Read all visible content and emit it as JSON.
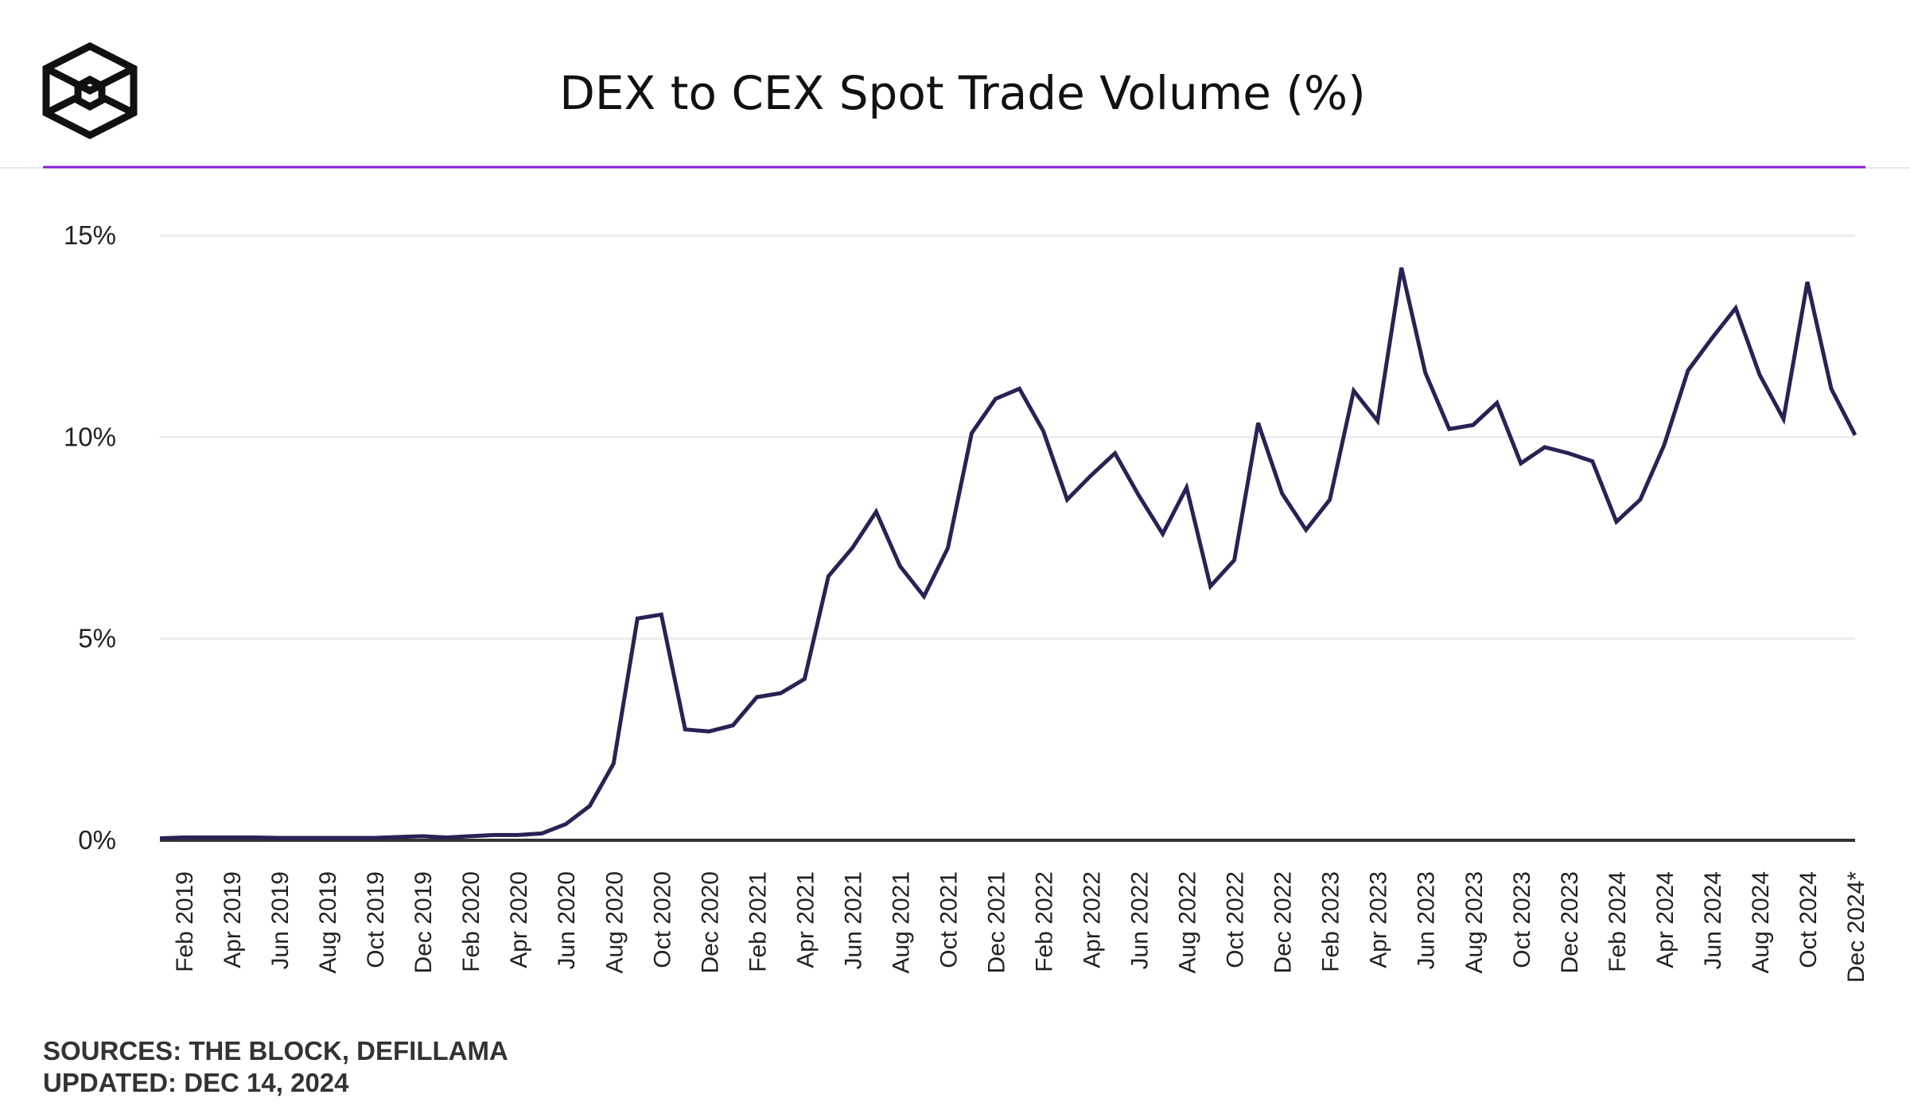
{
  "header": {
    "title": "DEX to CEX Spot Trade Volume (%)",
    "logo": "the-block-cube-logo"
  },
  "footer": {
    "sources": "SOURCES: THE BLOCK, DEFILLAMA",
    "updated": "UPDATED: DEC 14, 2024"
  },
  "colors": {
    "line": "#2a2154",
    "accent_rule": "#8a1fd6",
    "grid": "#ececec",
    "axis": "#333333"
  },
  "chart_data": {
    "type": "line",
    "title": "DEX to CEX Spot Trade Volume (%)",
    "xlabel": "",
    "ylabel": "",
    "ylim": [
      0,
      15
    ],
    "yticks": [
      {
        "value": 0,
        "label": "0%"
      },
      {
        "value": 5,
        "label": "5%"
      },
      {
        "value": 10,
        "label": "10%"
      },
      {
        "value": 15,
        "label": "15%"
      }
    ],
    "grid": true,
    "x": [
      "Jan 2019",
      "Feb 2019",
      "Mar 2019",
      "Apr 2019",
      "May 2019",
      "Jun 2019",
      "Jul 2019",
      "Aug 2019",
      "Sep 2019",
      "Oct 2019",
      "Nov 2019",
      "Dec 2019",
      "Jan 2020",
      "Feb 2020",
      "Mar 2020",
      "Apr 2020",
      "May 2020",
      "Jun 2020",
      "Jul 2020",
      "Aug 2020",
      "Sep 2020",
      "Oct 2020",
      "Nov 2020",
      "Dec 2020",
      "Jan 2021",
      "Feb 2021",
      "Mar 2021",
      "Apr 2021",
      "May 2021",
      "Jun 2021",
      "Jul 2021",
      "Aug 2021",
      "Sep 2021",
      "Oct 2021",
      "Nov 2021",
      "Dec 2021",
      "Jan 2022",
      "Feb 2022",
      "Mar 2022",
      "Apr 2022",
      "May 2022",
      "Jun 2022",
      "Jul 2022",
      "Aug 2022",
      "Sep 2022",
      "Oct 2022",
      "Nov 2022",
      "Dec 2022",
      "Jan 2023",
      "Feb 2023",
      "Mar 2023",
      "Apr 2023",
      "May 2023",
      "Jun 2023",
      "Jul 2023",
      "Aug 2023",
      "Sep 2023",
      "Oct 2023",
      "Nov 2023",
      "Dec 2023",
      "Jan 2024",
      "Feb 2024",
      "Mar 2024",
      "Apr 2024",
      "May 2024",
      "Jun 2024",
      "Jul 2024",
      "Aug 2024",
      "Sep 2024",
      "Oct 2024",
      "Nov 2024",
      "Dec 2024*"
    ],
    "xtick_labels": [
      "Feb 2019",
      "Apr 2019",
      "Jun 2019",
      "Aug 2019",
      "Oct 2019",
      "Dec 2019",
      "Feb 2020",
      "Apr 2020",
      "Jun 2020",
      "Aug 2020",
      "Oct 2020",
      "Dec 2020",
      "Feb 2021",
      "Apr 2021",
      "Jun 2021",
      "Aug 2021",
      "Oct 2021",
      "Dec 2021",
      "Feb 2022",
      "Apr 2022",
      "Jun 2022",
      "Aug 2022",
      "Oct 2022",
      "Dec 2022",
      "Feb 2023",
      "Apr 2023",
      "Jun 2023",
      "Aug 2023",
      "Oct 2023",
      "Dec 2023",
      "Feb 2024",
      "Apr 2024",
      "Jun 2024",
      "Aug 2024",
      "Oct 2024",
      "Dec 2024*"
    ],
    "series": [
      {
        "values": [
          0.05,
          0.07,
          0.07,
          0.07,
          0.07,
          0.06,
          0.06,
          0.06,
          0.06,
          0.06,
          0.08,
          0.1,
          0.07,
          0.1,
          0.13,
          0.13,
          0.17,
          0.4,
          0.85,
          1.9,
          5.5,
          5.6,
          2.75,
          2.7,
          2.85,
          3.55,
          3.65,
          4.0,
          6.55,
          7.25,
          8.15,
          6.8,
          6.05,
          7.25,
          10.1,
          10.95,
          11.2,
          10.15,
          8.45,
          9.05,
          9.6,
          8.55,
          7.6,
          8.75,
          6.3,
          6.95,
          10.35,
          8.6,
          7.7,
          8.45,
          11.15,
          10.4,
          14.2,
          11.6,
          10.2,
          10.3,
          10.85,
          9.35,
          9.75,
          9.6,
          9.4,
          7.9,
          8.45,
          9.8,
          11.65,
          12.45,
          13.2,
          11.55,
          10.45,
          13.85,
          11.2,
          10.05
        ]
      }
    ]
  }
}
